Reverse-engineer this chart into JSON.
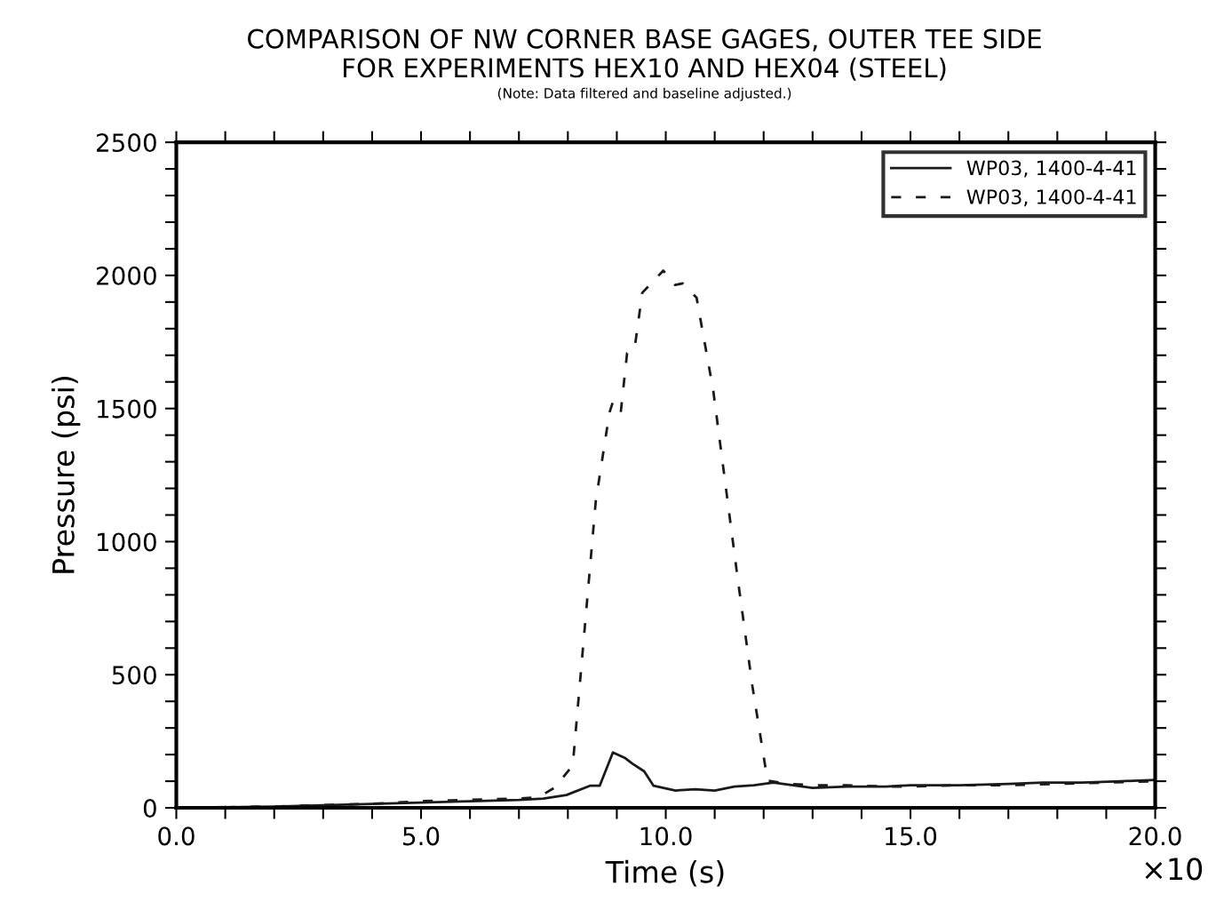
{
  "chart_data": {
    "type": "line",
    "title": "COMPARISON OF NW CORNER BASE GAGES, OUTER TEE SIDE\nFOR EXPERIMENTS HEX10 AND HEX04 (STEEL)",
    "subtitle": "(Note: Data filtered and baseline adjusted.)",
    "xlabel": "Time (s)",
    "ylabel": "Pressure (psi)",
    "annotations": [
      "×10"
    ],
    "xlim": [
      0,
      20
    ],
    "ylim": [
      0,
      2500
    ],
    "xticks": [
      {
        "value": 0,
        "label": "0.0"
      },
      {
        "value": 1,
        "label": null
      },
      {
        "value": 2,
        "label": null
      },
      {
        "value": 3,
        "label": null
      },
      {
        "value": 4,
        "label": null
      },
      {
        "value": 5,
        "label": "5.0"
      },
      {
        "value": 6,
        "label": null
      },
      {
        "value": 7,
        "label": null
      },
      {
        "value": 8,
        "label": null
      },
      {
        "value": 9,
        "label": null
      },
      {
        "value": 10,
        "label": "10.0"
      },
      {
        "value": 11,
        "label": null
      },
      {
        "value": 12,
        "label": null
      },
      {
        "value": 13,
        "label": null
      },
      {
        "value": 14,
        "label": null
      },
      {
        "value": 15,
        "label": "15.0"
      },
      {
        "value": 16,
        "label": null
      },
      {
        "value": 17,
        "label": null
      },
      {
        "value": 18,
        "label": null
      },
      {
        "value": 19,
        "label": null
      },
      {
        "value": 20,
        "label": "20.0"
      }
    ],
    "yticks": [
      0,
      {
        "value": 100,
        "label": null
      },
      {
        "value": 200,
        "label": null
      },
      {
        "value": 300,
        "label": null
      },
      {
        "value": 400,
        "label": null
      },
      500,
      {
        "value": 600,
        "label": null
      },
      {
        "value": 700,
        "label": null
      },
      {
        "value": 800,
        "label": null
      },
      {
        "value": 900,
        "label": null
      },
      1000,
      {
        "value": 1100,
        "label": null
      },
      {
        "value": 1200,
        "label": null
      },
      {
        "value": 1300,
        "label": null
      },
      {
        "value": 1400,
        "label": null
      },
      1500,
      {
        "value": 1600,
        "label": null
      },
      {
        "value": 1700,
        "label": null
      },
      {
        "value": 1800,
        "label": null
      },
      {
        "value": 1900,
        "label": null
      },
      2000,
      {
        "value": 2100,
        "label": null
      },
      {
        "value": 2200,
        "label": null
      },
      {
        "value": 2300,
        "label": null
      },
      {
        "value": 2400,
        "label": null
      },
      2500
    ],
    "grid": false,
    "legend": "top right",
    "series": [
      {
        "name": "WP03, 1400-4-41",
        "color": "#1a1a1a",
        "line_style": "solid",
        "x": [
          0,
          2,
          4,
          5,
          6,
          7,
          7.5,
          7.97,
          8.45,
          8.65,
          8.92,
          9.16,
          9.32,
          9.56,
          9.75,
          10.2,
          10.6,
          11.0,
          11.4,
          11.8,
          12.2,
          12.6,
          13.0,
          13.7,
          14.5,
          15.0,
          16.0,
          17.0,
          17.7,
          18.5,
          19.3,
          20.0
        ],
        "values": [
          0,
          5,
          15,
          20,
          25,
          30,
          35,
          48,
          83,
          83,
          208,
          188,
          166,
          137,
          83,
          65,
          70,
          65,
          80,
          85,
          95,
          85,
          75,
          80,
          80,
          85,
          85,
          90,
          95,
          95,
          100,
          105
        ]
      },
      {
        "name": "WP03, 1400-4-41",
        "color": "#1a1a1a",
        "line_style": "dashed",
        "x": [
          0,
          2,
          4,
          5,
          6,
          7,
          7.4,
          7.74,
          8.1,
          8.57,
          8.85,
          8.92,
          9.08,
          9.21,
          9.36,
          9.52,
          9.95,
          10.19,
          10.35,
          10.63,
          10.97,
          11.46,
          11.77,
          12.08,
          12.5,
          13.0,
          13.7,
          14.5,
          15.0,
          16.0,
          17.0,
          18.0,
          19.0,
          20.0
        ],
        "values": [
          0,
          5,
          15,
          25,
          30,
          35,
          40,
          77,
          160,
          1152,
          1485,
          1525,
          1485,
          1708,
          1721,
          1935,
          2018,
          1964,
          1970,
          1916,
          1568,
          875,
          457,
          102,
          90,
          85,
          85,
          80,
          80,
          85,
          85,
          90,
          95,
          100
        ]
      }
    ]
  }
}
